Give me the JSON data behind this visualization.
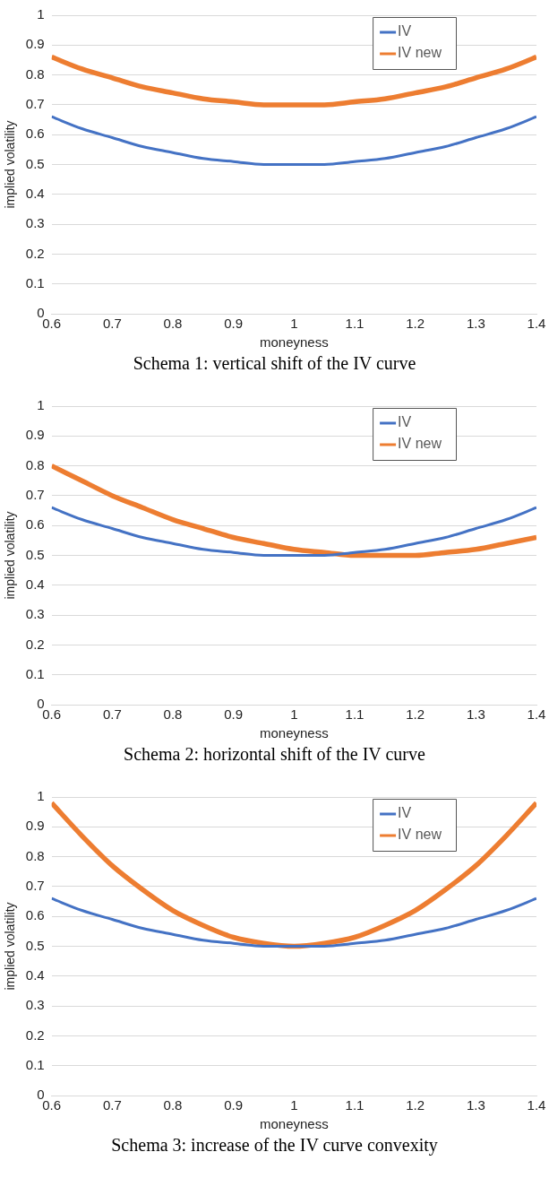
{
  "chart_data": [
    {
      "type": "line",
      "title": "Schema 1: vertical shift of the IV curve",
      "xlabel": "moneyness",
      "ylabel": "implied volatility",
      "x": [
        0.6,
        0.65,
        0.7,
        0.75,
        0.8,
        0.85,
        0.9,
        0.95,
        1,
        1.05,
        1.1,
        1.15,
        1.2,
        1.25,
        1.3,
        1.35,
        1.4
      ],
      "series": [
        {
          "name": "IV",
          "color": "#4472c4",
          "values": [
            0.66,
            0.62,
            0.59,
            0.56,
            0.54,
            0.52,
            0.51,
            0.5,
            0.5,
            0.5,
            0.51,
            0.52,
            0.54,
            0.56,
            0.59,
            0.62,
            0.66
          ]
        },
        {
          "name": "IV new",
          "color": "#ed7d31",
          "values": [
            0.86,
            0.82,
            0.79,
            0.76,
            0.74,
            0.72,
            0.71,
            0.7,
            0.7,
            0.7,
            0.71,
            0.72,
            0.74,
            0.76,
            0.79,
            0.82,
            0.86
          ]
        }
      ],
      "xlim": [
        0.6,
        1.4
      ],
      "xticks": [
        0.6,
        0.7,
        0.8,
        0.9,
        1,
        1.1,
        1.2,
        1.3,
        1.4
      ],
      "ylim": [
        0,
        1
      ],
      "yticks": [
        0,
        0.1,
        0.2,
        0.3,
        0.4,
        0.5,
        0.6,
        0.7,
        0.8,
        0.9,
        1
      ],
      "grid": "y",
      "legend": "top right",
      "marker": "none",
      "line_style": "solid"
    },
    {
      "type": "line",
      "title": "Schema 2: horizontal shift of the IV curve",
      "xlabel": "moneyness",
      "ylabel": "implied volatility",
      "x": [
        0.6,
        0.65,
        0.7,
        0.75,
        0.8,
        0.85,
        0.9,
        0.95,
        1,
        1.05,
        1.1,
        1.15,
        1.2,
        1.25,
        1.3,
        1.35,
        1.4
      ],
      "series": [
        {
          "name": "IV",
          "color": "#4472c4",
          "values": [
            0.66,
            0.62,
            0.59,
            0.56,
            0.54,
            0.52,
            0.51,
            0.5,
            0.5,
            0.5,
            0.51,
            0.52,
            0.54,
            0.56,
            0.59,
            0.62,
            0.66
          ]
        },
        {
          "name": "IV new",
          "color": "#ed7d31",
          "values": [
            0.8,
            0.75,
            0.7,
            0.66,
            0.62,
            0.59,
            0.56,
            0.54,
            0.52,
            0.51,
            0.5,
            0.5,
            0.5,
            0.51,
            0.52,
            0.54,
            0.56
          ]
        }
      ],
      "xlim": [
        0.6,
        1.4
      ],
      "xticks": [
        0.6,
        0.7,
        0.8,
        0.9,
        1,
        1.1,
        1.2,
        1.3,
        1.4
      ],
      "ylim": [
        0,
        1
      ],
      "yticks": [
        0,
        0.1,
        0.2,
        0.3,
        0.4,
        0.5,
        0.6,
        0.7,
        0.8,
        0.9,
        1
      ],
      "grid": "y",
      "legend": "top right",
      "marker": "none",
      "line_style": "solid"
    },
    {
      "type": "line",
      "title": "Schema 3: increase of the IV curve convexity",
      "xlabel": "moneyness",
      "ylabel": "implied volatility",
      "x": [
        0.6,
        0.65,
        0.7,
        0.75,
        0.8,
        0.85,
        0.9,
        0.95,
        1,
        1.05,
        1.1,
        1.15,
        1.2,
        1.25,
        1.3,
        1.35,
        1.4
      ],
      "series": [
        {
          "name": "IV",
          "color": "#4472c4",
          "values": [
            0.66,
            0.62,
            0.59,
            0.56,
            0.54,
            0.52,
            0.51,
            0.5,
            0.5,
            0.5,
            0.51,
            0.52,
            0.54,
            0.56,
            0.59,
            0.62,
            0.66
          ]
        },
        {
          "name": "IV new",
          "color": "#ed7d31",
          "values": [
            0.98,
            0.87,
            0.77,
            0.69,
            0.62,
            0.57,
            0.53,
            0.51,
            0.5,
            0.51,
            0.53,
            0.57,
            0.62,
            0.69,
            0.77,
            0.87,
            0.98
          ]
        }
      ],
      "xlim": [
        0.6,
        1.4
      ],
      "xticks": [
        0.6,
        0.7,
        0.8,
        0.9,
        1,
        1.1,
        1.2,
        1.3,
        1.4
      ],
      "ylim": [
        0,
        1
      ],
      "yticks": [
        0,
        0.1,
        0.2,
        0.3,
        0.4,
        0.5,
        0.6,
        0.7,
        0.8,
        0.9,
        1
      ],
      "grid": "y",
      "legend": "top right",
      "marker": "none",
      "line_style": "solid"
    }
  ]
}
